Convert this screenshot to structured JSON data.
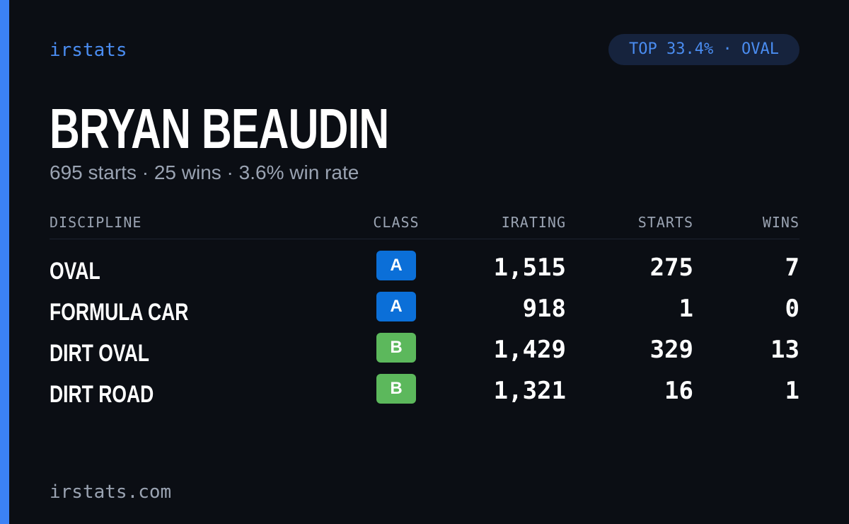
{
  "brand": "irstats",
  "badge": "TOP 33.4% · OVAL",
  "driver": {
    "name": "BRYAN BEAUDIN",
    "summary": "695 starts · 25 wins · 3.6% win rate"
  },
  "table": {
    "headers": [
      "DISCIPLINE",
      "CLASS",
      "IRATING",
      "STARTS",
      "WINS"
    ],
    "rows": [
      [
        "OVAL",
        "A",
        "1,515",
        "275",
        "7"
      ],
      [
        "FORMULA CAR",
        "A",
        "918",
        "1",
        "0"
      ],
      [
        "DIRT OVAL",
        "B",
        "1,429",
        "329",
        "13"
      ],
      [
        "DIRT ROAD",
        "B",
        "1,321",
        "16",
        "1"
      ]
    ]
  },
  "footer": "irstats.com"
}
